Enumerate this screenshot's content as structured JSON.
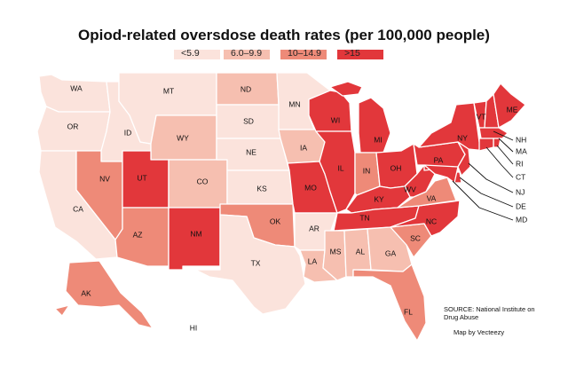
{
  "title": "Opiod-related oversdose death rates (per 100,000 people)",
  "legend": [
    {
      "label": "<5.9",
      "color": "#fbe3dc"
    },
    {
      "label": "6.0–9.9",
      "color": "#f6bfb0"
    },
    {
      "label": "10–14.9",
      "color": "#ee8a78"
    },
    {
      "label": ">15",
      "color": "#e2373b"
    }
  ],
  "states": {
    "WA": {
      "label": "WA",
      "tier": 0
    },
    "OR": {
      "label": "OR",
      "tier": 0
    },
    "CA": {
      "label": "CA",
      "tier": 0
    },
    "ID": {
      "label": "ID",
      "tier": 0
    },
    "NV": {
      "label": "NV",
      "tier": 2
    },
    "MT": {
      "label": "MT",
      "tier": 0
    },
    "WY": {
      "label": "WY",
      "tier": 1
    },
    "UT": {
      "label": "UT",
      "tier": 3
    },
    "AZ": {
      "label": "AZ",
      "tier": 2
    },
    "CO": {
      "label": "CO",
      "tier": 1
    },
    "NM": {
      "label": "NM",
      "tier": 3
    },
    "ND": {
      "label": "ND",
      "tier": 1
    },
    "SD": {
      "label": "SD",
      "tier": 0
    },
    "NE": {
      "label": "NE",
      "tier": 0
    },
    "KS": {
      "label": "KS",
      "tier": 0
    },
    "OK": {
      "label": "OK",
      "tier": 2
    },
    "TX": {
      "label": "TX",
      "tier": 0
    },
    "MN": {
      "label": "MN",
      "tier": 0
    },
    "IA": {
      "label": "IA",
      "tier": 1
    },
    "MO": {
      "label": "MO",
      "tier": 3
    },
    "AR": {
      "label": "AR",
      "tier": 0
    },
    "LA": {
      "label": "LA",
      "tier": 1
    },
    "WI": {
      "label": "WI",
      "tier": 3
    },
    "IL": {
      "label": "IL",
      "tier": 3
    },
    "MI": {
      "label": "MI",
      "tier": 3
    },
    "IN": {
      "label": "IN",
      "tier": 2
    },
    "OH": {
      "label": "OH",
      "tier": 3
    },
    "KY": {
      "label": "KY",
      "tier": 3
    },
    "TN": {
      "label": "TN",
      "tier": 3
    },
    "MS": {
      "label": "MS",
      "tier": 1
    },
    "AL": {
      "label": "AL",
      "tier": 1
    },
    "GA": {
      "label": "GA",
      "tier": 1
    },
    "FL": {
      "label": "FL",
      "tier": 2
    },
    "SC": {
      "label": "SC",
      "tier": 2
    },
    "NC": {
      "label": "NC",
      "tier": 3
    },
    "VA": {
      "label": "VA",
      "tier": 2
    },
    "WV": {
      "label": "WV",
      "tier": 3
    },
    "PA": {
      "label": "PA",
      "tier": 3
    },
    "NY": {
      "label": "NY",
      "tier": 3
    },
    "VT": {
      "label": "VT",
      "tier": 3
    },
    "NH": {
      "label": "NH",
      "tier": 3
    },
    "ME": {
      "label": "ME",
      "tier": 3
    },
    "MA": {
      "label": "MA",
      "tier": 3
    },
    "RI": {
      "label": "RI",
      "tier": 3
    },
    "CT": {
      "label": "CT",
      "tier": 3
    },
    "NJ": {
      "label": "NJ",
      "tier": 3
    },
    "DE": {
      "label": "DE",
      "tier": 3
    },
    "MD": {
      "label": "MD",
      "tier": 3
    },
    "AK": {
      "label": "AK",
      "tier": 2
    },
    "HI": {
      "label": "HI",
      "tier": 0
    }
  },
  "source": "SOURCE: National Institute on Drug Abuse",
  "credit": "Map by Vecteezy"
}
